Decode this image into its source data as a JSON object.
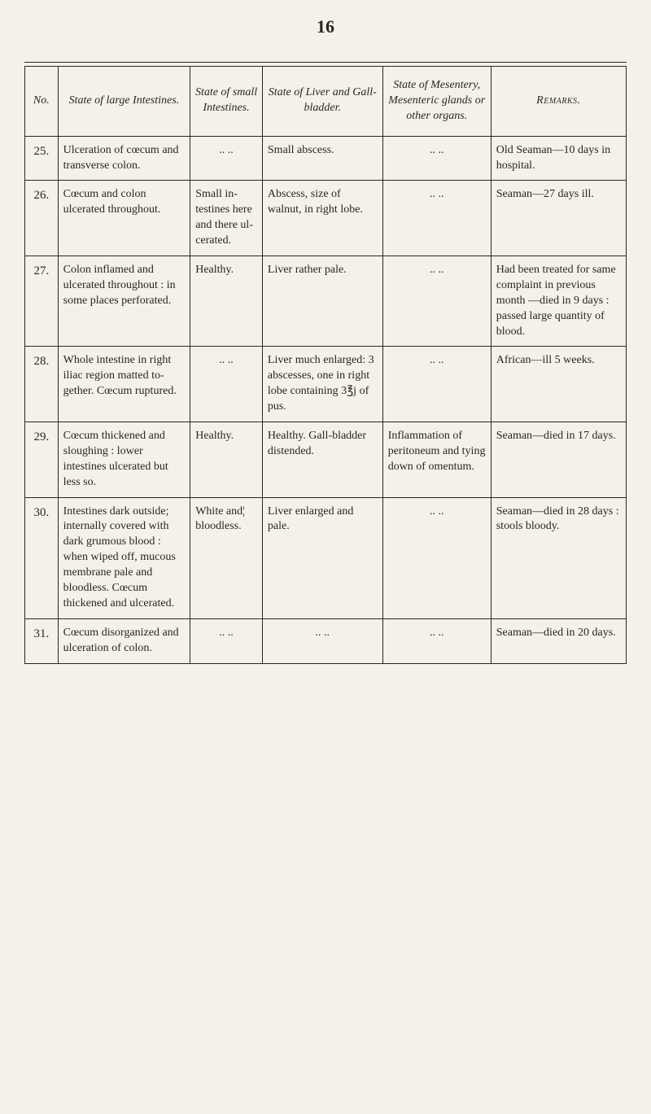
{
  "page_number": "16",
  "headers": {
    "no": "No.",
    "intestines": "State of large Intestines.",
    "small_intestines": "State of small Intes­tines.",
    "liver": "State of Liver and Gall-blad­der.",
    "mesentery": "State of Mesentery, Mesenteric glands or other organs.",
    "remarks": "Remarks."
  },
  "rows": [
    {
      "no": "25.",
      "intestines": "Ulceration of cœ­cum and trans­verse colon.",
      "small": ".. ..",
      "liver": "Small abscess.",
      "mesentery": "..        ..",
      "remarks": "Old Seaman—10 days in hospital."
    },
    {
      "no": "26.",
      "intestines": "Cœcum and co­lon ulcerated throughout.",
      "small": "Small in­testines here and there ul­cerated.",
      "liver": "Abscess, size of walnut, in right lobe.",
      "mesentery": "..        ..",
      "remarks": "Seaman—27 days ill."
    },
    {
      "no": "27.",
      "intestines": "Colon inflamed and ulcerated throughout : in some places per­forated.",
      "small": "Healthy.",
      "liver": "Liver rather pale.",
      "mesentery": "..        ..",
      "remarks": "Had been treated for same com­plaint in pre­vious month —died in 9 days : passed large quanti­ty of blood."
    },
    {
      "no": "28.",
      "intestines": "Whole intestine in right iliac re­gion matted to­gether. Cœcum ruptured.",
      "small": ".. ..",
      "liver": "Liver much en­larged: 3 ab­scesses, one in right lobe con­taining 3℥j of pus.",
      "mesentery": "..        ..",
      "remarks": "African—ill 5 weeks."
    },
    {
      "no": "29.",
      "intestines": "Cœcum thickened and sloughing : lower intestines ulcerated but less so.",
      "small": "Healthy.",
      "liver": "Healthy. Gall-bladder dis­tended.",
      "mesentery": "Inflammation of peritone­um and ty­ing down of omentum.",
      "remarks": "Seaman—died in 17 days."
    },
    {
      "no": "30.",
      "intestines": "Intestines dark outside; internal­ly covered with dark grumous blood : when wip­ed off, mucous membrane pale and bloodless. Cœcum thicken­ed and ulcerated.",
      "small": "White and¦ blood­less.",
      "liver": "Liver enlarged and pale.",
      "mesentery": "..        ..",
      "remarks": "Seaman—died in 28 days : stools bloody."
    },
    {
      "no": "31.",
      "intestines": "Cœcum disorgan­ized and ulcera­tion of colon.",
      "small": ".. ..",
      "liver": "..        ..",
      "mesentery": "..        ..",
      "remarks": "Seaman—died in 20 days."
    }
  ]
}
